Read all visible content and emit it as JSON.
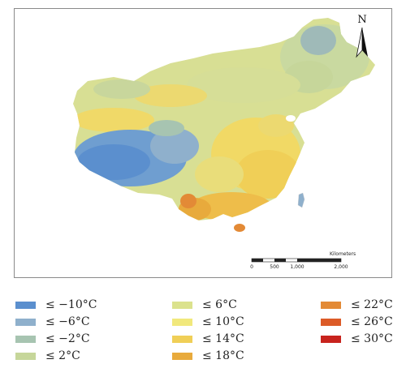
{
  "map": {
    "north_label": "N",
    "scale_units": "Kilometers",
    "scale_ticks": [
      "0",
      "500",
      "1,000",
      "2,000"
    ]
  },
  "legend": {
    "columns": [
      [
        {
          "label": "≤ −10°C",
          "color": "#5b8fce"
        },
        {
          "label": "≤ −6°C",
          "color": "#8fb0cc"
        },
        {
          "label": "≤ −2°C",
          "color": "#a7c4b1"
        },
        {
          "label": "≤ 2°C",
          "color": "#c6d69a"
        }
      ],
      [
        {
          "label": "≤ 6°C",
          "color": "#dbe28d"
        },
        {
          "label": "≤ 10°C",
          "color": "#f1e87c"
        },
        {
          "label": "≤ 14°C",
          "color": "#f0cf57"
        },
        {
          "label": "≤ 18°C",
          "color": "#e8aa3c"
        }
      ],
      [
        {
          "label": "≤ 22°C",
          "color": "#e38a36"
        },
        {
          "label": "≤ 26°C",
          "color": "#dc5b27"
        },
        {
          "label": "≤ 30°C",
          "color": "#c8231d"
        }
      ]
    ]
  }
}
